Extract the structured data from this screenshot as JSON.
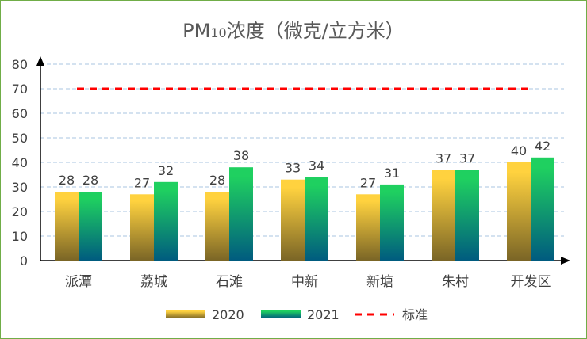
{
  "chart_data": {
    "type": "bar",
    "title": {
      "prefix": "PM",
      "sub": "10",
      "suffix": "浓度（微克/立方米）"
    },
    "categories": [
      "派潭",
      "荔城",
      "石滩",
      "中新",
      "新塘",
      "朱村",
      "开发区"
    ],
    "series": [
      {
        "name": "2020",
        "values": [
          28,
          27,
          28,
          33,
          27,
          37,
          40
        ],
        "color_top": "#ffd23f",
        "color_bottom": "#7a6526"
      },
      {
        "name": "2021",
        "values": [
          28,
          32,
          38,
          34,
          31,
          37,
          42
        ],
        "color_top": "#1fd060",
        "color_bottom": "#005b7f"
      }
    ],
    "reference_line": {
      "name": "标准",
      "value": 70,
      "color": "#ff0000",
      "style": "dashed"
    },
    "ylim": [
      0,
      80
    ],
    "yticks": [
      0,
      10,
      20,
      30,
      40,
      50,
      60,
      70,
      80
    ],
    "grid": true,
    "legend": "bottom",
    "data_labels": true,
    "border_color": "#70ad47"
  }
}
